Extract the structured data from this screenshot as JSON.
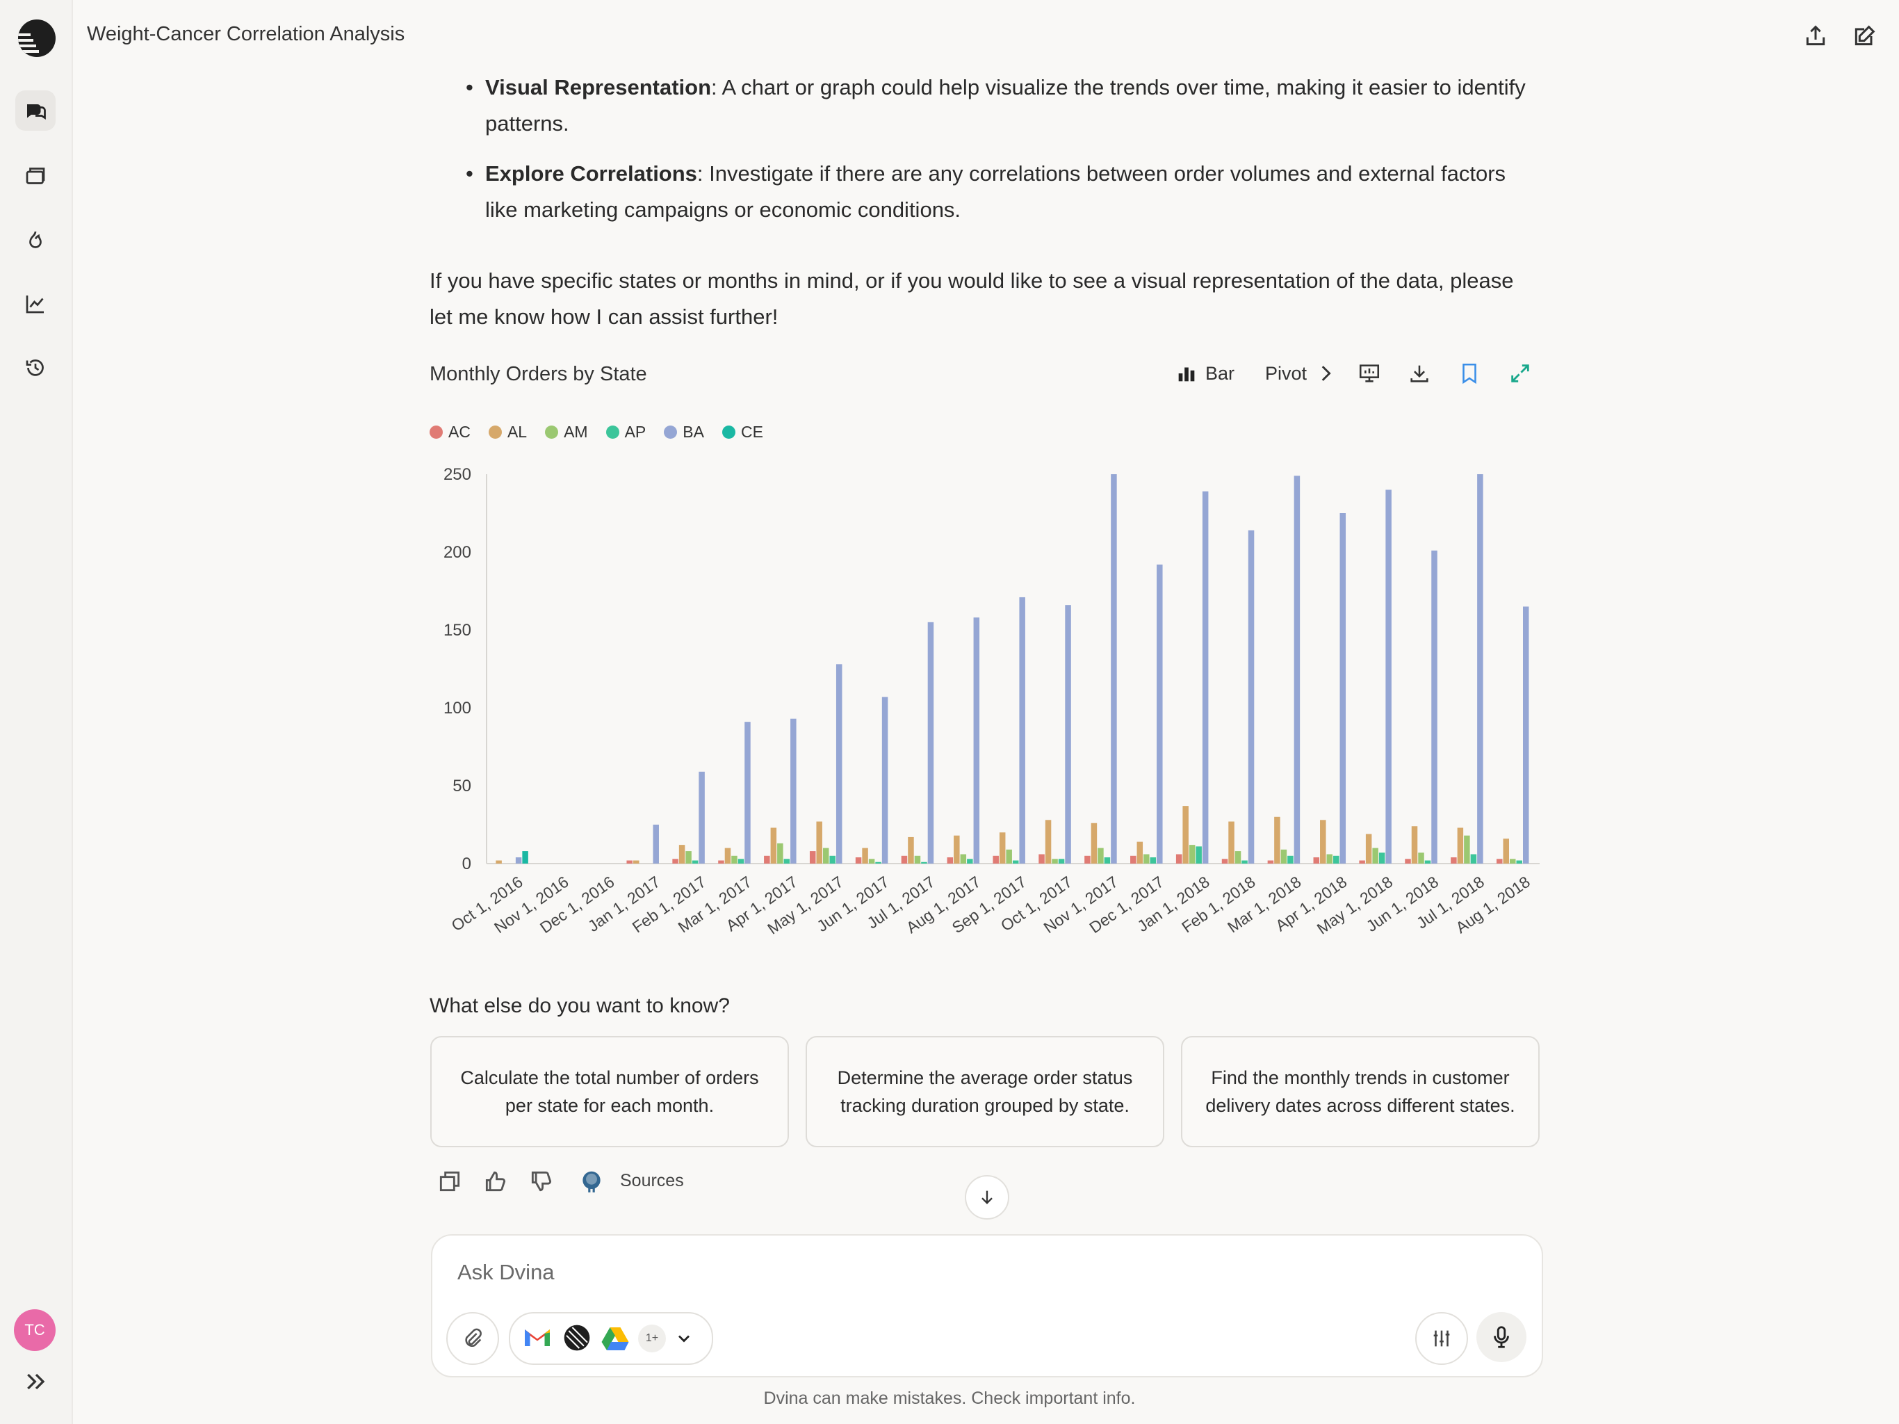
{
  "topbar": {
    "title": "Weight-Cancer Correlation Analysis"
  },
  "sidebar": {
    "avatar_initials": "TC"
  },
  "message": {
    "bullets": [
      {
        "bold": "Visual Representation",
        "text": ": A chart or graph could help visualize the trends over time, making it easier to identify patterns."
      },
      {
        "bold": "Explore Correlations",
        "text": ": Investigate if there are any correlations between order volumes and external factors like marketing campaigns or economic conditions."
      }
    ],
    "paragraph": "If you have specific states or months in mind, or if you would like to see a visual representation of the data, please let me know how I can assist further!"
  },
  "chart_toolbar": {
    "title": "Monthly Orders by State",
    "type_label": "Bar",
    "pivot_label": "Pivot"
  },
  "chart_data": {
    "type": "bar",
    "categories": [
      "Oct 1, 2016",
      "Nov 1, 2016",
      "Dec 1, 2016",
      "Jan 1, 2017",
      "Feb 1, 2017",
      "Mar 1, 2017",
      "Apr 1, 2017",
      "May 1, 2017",
      "Jun 1, 2017",
      "Jul 1, 2017",
      "Aug 1, 2017",
      "Sep 1, 2017",
      "Oct 1, 2017",
      "Nov 1, 2017",
      "Dec 1, 2017",
      "Jan 1, 2018",
      "Feb 1, 2018",
      "Mar 1, 2018",
      "Apr 1, 2018",
      "May 1, 2018",
      "Jun 1, 2018",
      "Jul 1, 2018",
      "Aug 1, 2018"
    ],
    "series": [
      {
        "name": "AC",
        "color": "#e07b74",
        "values": [
          0,
          0,
          0,
          2,
          3,
          2,
          5,
          8,
          4,
          5,
          4,
          5,
          6,
          5,
          5,
          6,
          3,
          2,
          4,
          2,
          3,
          4,
          3
        ]
      },
      {
        "name": "AL",
        "color": "#d6a86a",
        "values": [
          2,
          0,
          0,
          2,
          12,
          10,
          23,
          27,
          10,
          17,
          18,
          20,
          28,
          26,
          14,
          37,
          27,
          30,
          28,
          19,
          24,
          23,
          16
        ]
      },
      {
        "name": "AM",
        "color": "#9bc871",
        "values": [
          0,
          0,
          0,
          0,
          8,
          5,
          13,
          10,
          3,
          5,
          6,
          9,
          3,
          10,
          6,
          12,
          8,
          9,
          6,
          10,
          7,
          18,
          3
        ]
      },
      {
        "name": "AP",
        "color": "#3cc59a",
        "values": [
          0,
          0,
          0,
          0,
          2,
          3,
          3,
          5,
          1,
          1,
          3,
          2,
          3,
          4,
          4,
          11,
          2,
          5,
          5,
          7,
          2,
          6,
          2
        ]
      },
      {
        "name": "BA",
        "color": "#95a6d4",
        "values": [
          4,
          0,
          0,
          25,
          59,
          91,
          93,
          128,
          107,
          155,
          158,
          171,
          166,
          250,
          192,
          239,
          214,
          249,
          225,
          240,
          201,
          250,
          165
        ]
      },
      {
        "name": "CE",
        "color": "#1ab8a3",
        "values": [
          8,
          0,
          0,
          0,
          0,
          0,
          0,
          0,
          0,
          0,
          0,
          0,
          0,
          0,
          0,
          0,
          0,
          0,
          0,
          0,
          0,
          0,
          0
        ]
      }
    ],
    "ylim": [
      0,
      250
    ],
    "yticks": [
      0,
      50,
      100,
      150,
      200,
      250
    ],
    "legend_position": "top-left",
    "grid": false
  },
  "followup": {
    "question": "What else do you want to know?",
    "suggestions": [
      "Calculate the total number of orders per state for each month.",
      "Determine the average order status tracking duration grouped by state.",
      "Find the monthly trends in customer delivery dates across different states."
    ]
  },
  "actions": {
    "sources_label": "Sources"
  },
  "composer": {
    "placeholder": "Ask Dvina",
    "apps_more": "1+"
  },
  "footer": {
    "disclaimer": "Dvina can make mistakes. Check important info."
  }
}
